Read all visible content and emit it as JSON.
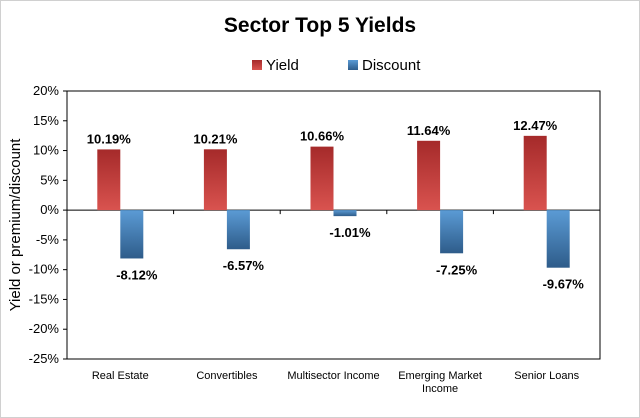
{
  "chart_data": {
    "type": "bar",
    "title": "Sector Top 5 Yields",
    "ylabel": "Yield or premium/discount",
    "xlabel": "",
    "categories": [
      [
        "Real Estate"
      ],
      [
        "Convertibles"
      ],
      [
        "Multisector Income"
      ],
      [
        "Emerging Market",
        "Income"
      ],
      [
        "Senior Loans"
      ]
    ],
    "series": [
      {
        "name": "Yield",
        "values": [
          10.19,
          10.21,
          10.66,
          11.64,
          12.47
        ],
        "labels": [
          "10.19%",
          "10.21%",
          "10.66%",
          "11.64%",
          "12.47%"
        ],
        "color_light": "#d9534f",
        "color_dark": "#a52a2a"
      },
      {
        "name": "Discount",
        "values": [
          -8.12,
          -6.57,
          -1.01,
          -7.25,
          -9.67
        ],
        "labels": [
          "-8.12%",
          "-6.57%",
          "-1.01%",
          "-7.25%",
          "-9.67%"
        ],
        "color_light": "#5b9bd5",
        "color_dark": "#2e5c8a"
      }
    ],
    "ylim": [
      -25,
      20
    ],
    "yticks": [
      20,
      15,
      10,
      5,
      0,
      -5,
      -10,
      -15,
      -20,
      -25
    ],
    "ytick_labels": [
      "20%",
      "15%",
      "10%",
      "5%",
      "0%",
      "-5%",
      "-10%",
      "-15%",
      "-20%",
      "-25%"
    ],
    "grid": false,
    "legend": "top-center"
  }
}
